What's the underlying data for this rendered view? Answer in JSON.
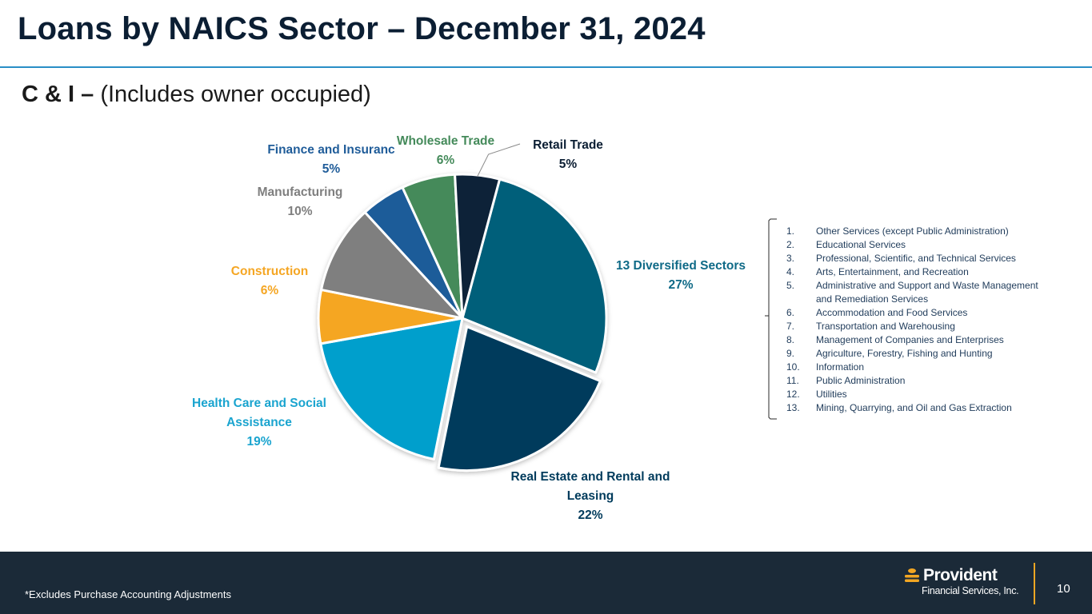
{
  "slide": {
    "title": "Loans by NAICS Sector – December 31, 2024",
    "subtitle_bold": "C & I –",
    "subtitle_rest": "(Includes owner occupied)",
    "footnote": "*Excludes Purchase Accounting Adjustments",
    "page_number": "10"
  },
  "logo": {
    "name": "Provident",
    "sub": "Financial Services, Inc."
  },
  "chart_data": {
    "type": "pie",
    "slices": [
      {
        "label": [
          "13 Diversified Sectors"
        ],
        "value": 27,
        "value_label": "27%",
        "color": "#005f7a",
        "exploded": false
      },
      {
        "label": [
          "Real Estate and Rental and",
          "Leasing"
        ],
        "value": 22,
        "value_label": "22%",
        "color": "#003b5c",
        "exploded": true
      },
      {
        "label": [
          "Health Care and Social",
          "Assistance"
        ],
        "value": 19,
        "value_label": "19%",
        "color": "#009fcc",
        "exploded": false
      },
      {
        "label": [
          "Construction"
        ],
        "value": 6,
        "value_label": "6%",
        "color": "#f5a623",
        "exploded": false
      },
      {
        "label": [
          "Manufacturing"
        ],
        "value": 10,
        "value_label": "10%",
        "color": "#7f7f7f",
        "exploded": false
      },
      {
        "label": [
          "Finance and Insuranc"
        ],
        "value": 5,
        "value_label": "5%",
        "color": "#1f5c99",
        "exploded": false
      },
      {
        "label": [
          "Wholesale Trade"
        ],
        "value": 6,
        "value_label": "6%",
        "color": "#448a5a",
        "exploded": false
      },
      {
        "label": [
          "Retail Trade"
        ],
        "value": 5,
        "value_label": "5%",
        "color": "#0a2038",
        "exploded": false
      }
    ],
    "label_colors": [
      "#0f6a87",
      "#003b5c",
      "#1aa4cf",
      "#f5a623",
      "#7f7f7f",
      "#1f5c99",
      "#448a5a",
      "#0b1e33"
    ]
  },
  "diversified_sectors": [
    {
      "num": "1.",
      "text": "Other Services (except Public Administration)"
    },
    {
      "num": "2.",
      "text": "Educational Services"
    },
    {
      "num": "3.",
      "text": "Professional, Scientific, and Technical Services"
    },
    {
      "num": "4.",
      "text": "Arts, Entertainment, and Recreation"
    },
    {
      "num": "5.",
      "text": "Administrative and Support and Waste Management and Remediation Services"
    },
    {
      "num": "6.",
      "text": "Accommodation and Food Services"
    },
    {
      "num": "7.",
      "text": "Transportation and Warehousing"
    },
    {
      "num": "8.",
      "text": "Management of Companies and Enterprises"
    },
    {
      "num": "9.",
      "text": "Agriculture, Forestry, Fishing and Hunting"
    },
    {
      "num": "10.",
      "text": "Information"
    },
    {
      "num": "11.",
      "text": "Public Administration"
    },
    {
      "num": "12.",
      "text": "Utilities"
    },
    {
      "num": "13.",
      "text": "Mining, Quarrying, and Oil and Gas Extraction"
    }
  ]
}
